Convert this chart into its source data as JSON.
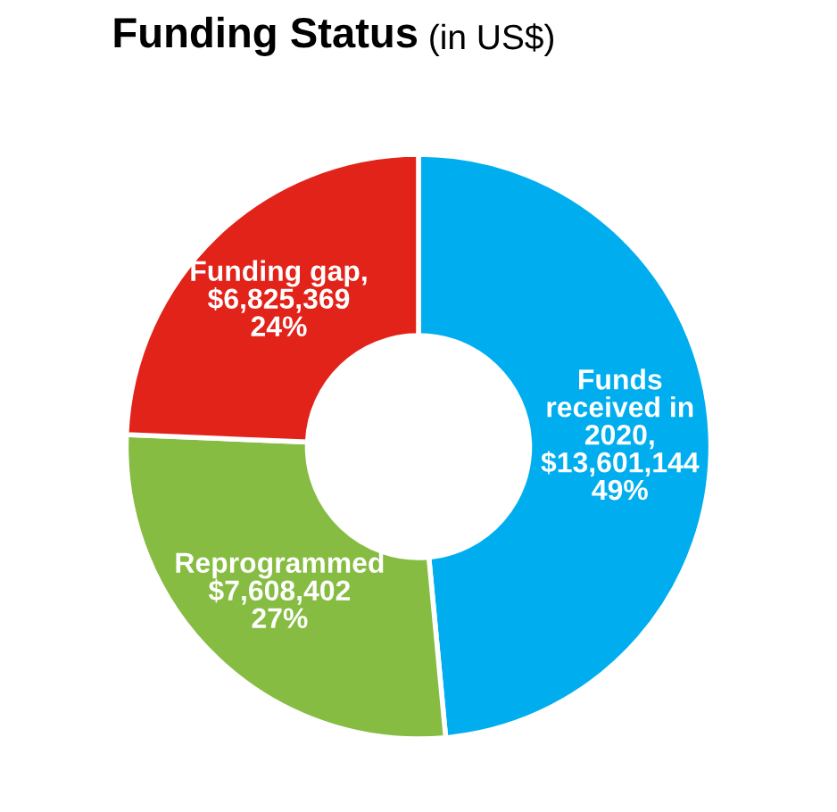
{
  "chart_data": {
    "type": "donut",
    "title": "Funding Status",
    "subtitle": "(in US$)",
    "categories": [
      "Funds\nreceived in\n2020",
      "Reprogrammed",
      "Funding gap"
    ],
    "values": [
      13601144,
      7608402,
      6825369
    ],
    "value_labels": [
      ",\n$13,601,144\n49%",
      "\n$7,608,402\n27%",
      ",\n$6,825,369\n24%"
    ],
    "colors": [
      "#00aeef",
      "#86bc42",
      "#e2231a"
    ],
    "legend": false
  }
}
